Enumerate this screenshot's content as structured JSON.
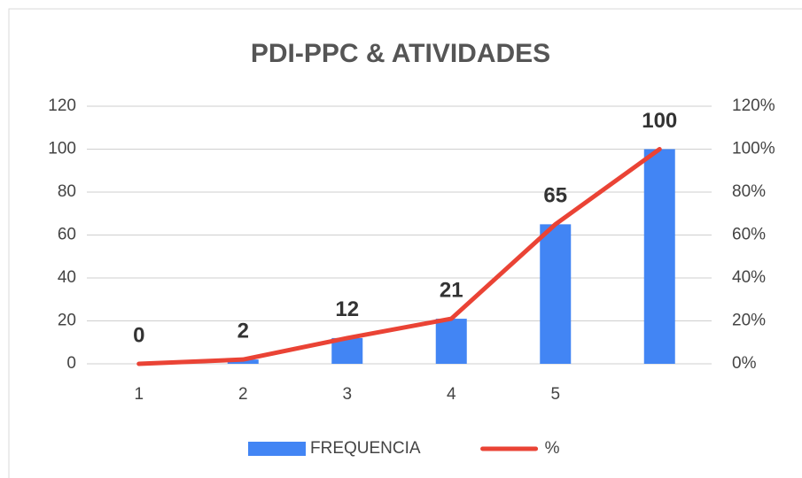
{
  "chart_data": {
    "type": "bar",
    "title": "PDI-PPC & ATIVIDADES",
    "categories": [
      "1",
      "2",
      "3",
      "4",
      "5",
      null
    ],
    "series": [
      {
        "name": "FREQUENCIA",
        "type": "bar",
        "color": "#4285f4",
        "values": [
          0,
          2,
          12,
          21,
          65,
          100
        ]
      },
      {
        "name": "%",
        "type": "line",
        "axis": "y2",
        "color": "#ea4335",
        "values": [
          0,
          2,
          12,
          21,
          65,
          100
        ]
      }
    ],
    "ylim": [
      0,
      120
    ],
    "yticks": [
      0,
      20,
      40,
      60,
      80,
      100,
      120
    ],
    "y2lim": [
      0,
      120
    ],
    "y2ticks": [
      {
        "value": 0,
        "label": "0%"
      },
      {
        "value": 20,
        "label": "20%"
      },
      {
        "value": 40,
        "label": "40%"
      },
      {
        "value": 60,
        "label": "60%"
      },
      {
        "value": 80,
        "label": "80%"
      },
      {
        "value": 100,
        "label": "100%"
      },
      {
        "value": 120,
        "label": "120%"
      }
    ],
    "grid": true,
    "legend": "bottom"
  }
}
